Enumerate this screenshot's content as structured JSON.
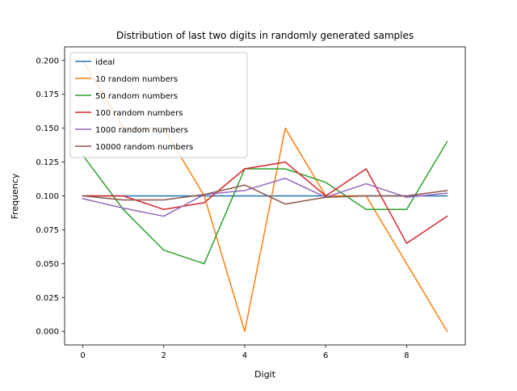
{
  "chart_data": {
    "type": "line",
    "title": "Distribution of last two digits in randomly generated samples",
    "xlabel": "Digit",
    "ylabel": "Frequency",
    "xlim": [
      -0.45,
      9.45
    ],
    "ylim": [
      -0.01,
      0.21
    ],
    "x": [
      0,
      1,
      2,
      3,
      4,
      5,
      6,
      7,
      8,
      9
    ],
    "xticks": [
      0,
      2,
      4,
      6,
      8
    ],
    "xtick_labels": [
      "0",
      "2",
      "4",
      "6",
      "8"
    ],
    "yticks": [
      0.0,
      0.025,
      0.05,
      0.075,
      0.1,
      0.125,
      0.15,
      0.175,
      0.2
    ],
    "ytick_labels": [
      "0.000",
      "0.025",
      "0.050",
      "0.075",
      "0.100",
      "0.125",
      "0.150",
      "0.175",
      "0.200"
    ],
    "grid": false,
    "legend_position": "top-left",
    "series": [
      {
        "name": "ideal",
        "color": "#1f77b4",
        "values": [
          0.1,
          0.1,
          0.1,
          0.1,
          0.1,
          0.1,
          0.1,
          0.1,
          0.1,
          0.1
        ]
      },
      {
        "name": "10 random numbers",
        "color": "#ff7f0e",
        "values": [
          0.2,
          0.15,
          0.15,
          0.1,
          0.0,
          0.15,
          0.1,
          0.1,
          0.05,
          0.0
        ]
      },
      {
        "name": "50 random numbers",
        "color": "#2ca02c",
        "values": [
          0.13,
          0.09,
          0.06,
          0.05,
          0.12,
          0.12,
          0.11,
          0.09,
          0.09,
          0.14
        ]
      },
      {
        "name": "100 random numbers",
        "color": "#d62728",
        "values": [
          0.1,
          0.1,
          0.09,
          0.095,
          0.12,
          0.125,
          0.1,
          0.12,
          0.065,
          0.085
        ]
      },
      {
        "name": "1000 random numbers",
        "color": "#9467bd",
        "values": [
          0.098,
          0.091,
          0.085,
          0.101,
          0.104,
          0.113,
          0.099,
          0.109,
          0.099,
          0.102
        ]
      },
      {
        "name": "10000 random numbers",
        "color": "#8c564b",
        "values": [
          0.1,
          0.097,
          0.097,
          0.101,
          0.108,
          0.094,
          0.099,
          0.1,
          0.1,
          0.104
        ]
      }
    ]
  }
}
